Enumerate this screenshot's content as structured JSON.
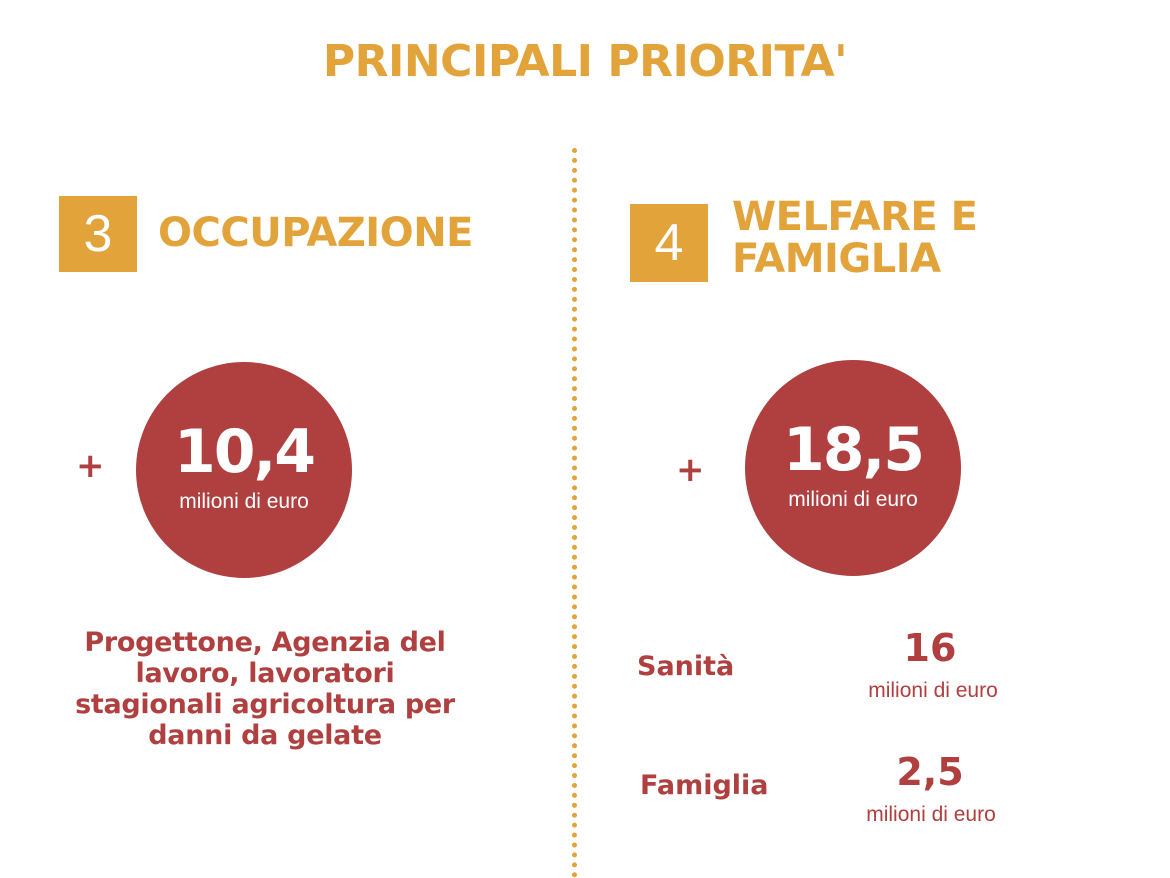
{
  "title": "PRINCIPALI PRIORITA'",
  "sections": [
    {
      "number": "3",
      "heading_lines": [
        "OCCUPAZIONE"
      ],
      "plus": "+",
      "amount": "10,4",
      "amount_unit": "milioni di euro",
      "description": "Progettone, Agenzia del lavoro, lavoratori stagionali agricoltura per danni da gelate"
    },
    {
      "number": "4",
      "heading_lines": [
        "WELFARE E",
        "FAMIGLIA"
      ],
      "plus": "+",
      "amount": "18,5",
      "amount_unit": "milioni di euro",
      "items": [
        {
          "label": "Sanità",
          "value": "16",
          "unit": "milioni di euro"
        },
        {
          "label": "Famiglia",
          "value": "2,5",
          "unit": "milioni di euro"
        }
      ]
    }
  ],
  "colors": {
    "accent": "#e2a33a",
    "highlight": "#b03f3f",
    "background": "#ffffff"
  }
}
